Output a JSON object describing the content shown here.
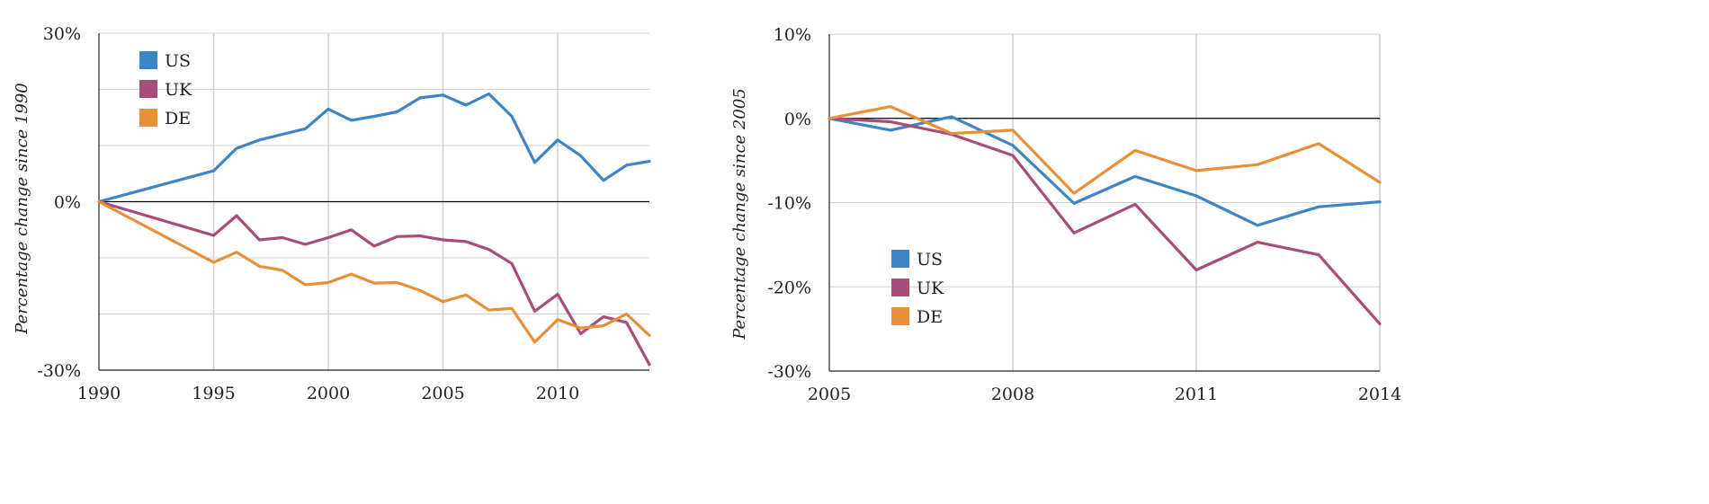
{
  "colors": {
    "US": "#3d85c6",
    "UK": "#a64d79",
    "DE": "#e69138",
    "grid": "#d0d0d0",
    "zero": "#000000"
  },
  "chart_data": [
    {
      "type": "line",
      "ylabel": "Percentage change since 1990",
      "xlabel": "",
      "ylim": [
        -30,
        30
      ],
      "xlim": [
        1990,
        2014
      ],
      "yticks": [
        30,
        0,
        -30
      ],
      "ytick_labels": [
        "30%",
        "0%",
        "-30%"
      ],
      "ygrid": [
        20,
        10,
        -10,
        -20
      ],
      "xticks": [
        1990,
        1995,
        2000,
        2005,
        2010
      ],
      "xtick_labels": [
        "1990",
        "1995",
        "2000",
        "2005",
        "2010"
      ],
      "legend_position": "top-left",
      "grid": true,
      "series": [
        {
          "name": "US",
          "x": [
            1990,
            1995,
            1996,
            1997,
            1998,
            1999,
            2000,
            2001,
            2002,
            2003,
            2004,
            2005,
            2006,
            2007,
            2008,
            2009,
            2010,
            2011,
            2012,
            2013,
            2014
          ],
          "y": [
            0,
            5.5,
            9.5,
            11,
            12,
            13,
            16.5,
            14.5,
            15.2,
            16,
            18.5,
            19,
            17.2,
            19.2,
            15.2,
            7,
            11,
            8.2,
            3.8,
            6.5,
            7.2
          ]
        },
        {
          "name": "UK",
          "x": [
            1990,
            1995,
            1996,
            1997,
            1998,
            1999,
            2000,
            2001,
            2002,
            2003,
            2004,
            2005,
            2006,
            2007,
            2008,
            2009,
            2010,
            2011,
            2012,
            2013,
            2014
          ],
          "y": [
            0,
            -6,
            -2.5,
            -6.8,
            -6.4,
            -7.6,
            -6.4,
            -5,
            -7.9,
            -6.2,
            -6.1,
            -6.8,
            -7.1,
            -8.5,
            -11,
            -19.5,
            -16.5,
            -23.5,
            -20.5,
            -21.5,
            -29
          ]
        },
        {
          "name": "DE",
          "x": [
            1990,
            1995,
            1996,
            1997,
            1998,
            1999,
            2000,
            2001,
            2002,
            2003,
            2004,
            2005,
            2006,
            2007,
            2008,
            2009,
            2010,
            2011,
            2012,
            2013,
            2014
          ],
          "y": [
            0,
            -10.8,
            -9,
            -11.5,
            -12.2,
            -14.8,
            -14.4,
            -12.9,
            -14.5,
            -14.4,
            -15.8,
            -17.8,
            -16.6,
            -19.3,
            -19,
            -25,
            -21,
            -22.5,
            -22.1,
            -20,
            -23.8
          ]
        }
      ]
    },
    {
      "type": "line",
      "ylabel": "Percentage change since 2005",
      "xlabel": "",
      "ylim": [
        -30,
        10
      ],
      "xlim": [
        2005,
        2014
      ],
      "yticks": [
        10,
        0,
        -10,
        -20,
        -30
      ],
      "ytick_labels": [
        "10%",
        "0%",
        "-10%",
        "-20%",
        "-30%"
      ],
      "ygrid": [
        10,
        -10,
        -20
      ],
      "xticks": [
        2005,
        2008,
        2011,
        2014
      ],
      "xtick_labels": [
        "2005",
        "2008",
        "2011",
        "2014"
      ],
      "legend_position": "bottom-left",
      "grid": true,
      "series": [
        {
          "name": "US",
          "x": [
            2005,
            2006,
            2007,
            2008,
            2009,
            2010,
            2011,
            2012,
            2013,
            2014
          ],
          "y": [
            0,
            -1.4,
            0.2,
            -3.2,
            -10.1,
            -6.9,
            -9.2,
            -12.7,
            -10.5,
            -9.9
          ]
        },
        {
          "name": "UK",
          "x": [
            2005,
            2006,
            2007,
            2008,
            2009,
            2010,
            2011,
            2012,
            2013,
            2014
          ],
          "y": [
            0,
            -0.4,
            -1.9,
            -4.4,
            -13.6,
            -10.2,
            -18,
            -14.7,
            -16.2,
            -24.4
          ]
        },
        {
          "name": "DE",
          "x": [
            2005,
            2006,
            2007,
            2008,
            2009,
            2010,
            2011,
            2012,
            2013,
            2014
          ],
          "y": [
            0,
            1.4,
            -1.8,
            -1.4,
            -8.9,
            -3.8,
            -6.2,
            -5.5,
            -3,
            -7.6
          ]
        }
      ]
    }
  ]
}
